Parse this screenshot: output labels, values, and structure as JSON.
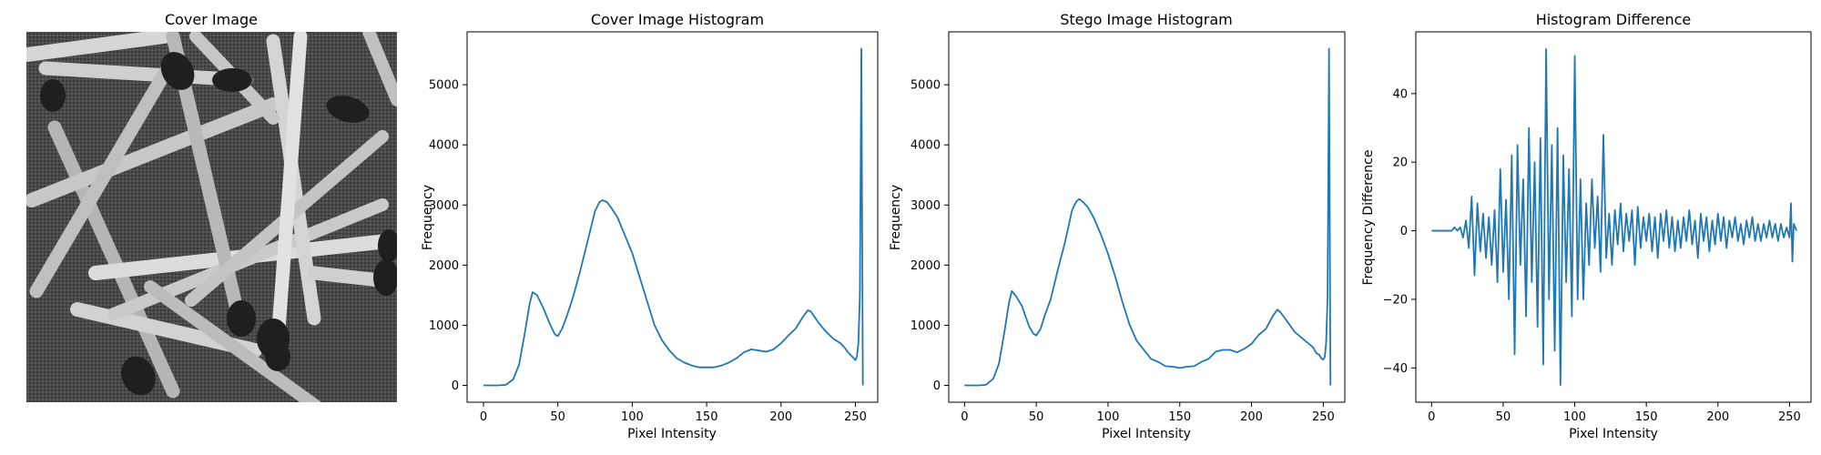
{
  "figure": {
    "panels": [
      "Cover Image",
      "Cover Image Histogram",
      "Stego Image Histogram",
      "Histogram Difference"
    ]
  },
  "chart_data": [
    {
      "type": "image",
      "title": "Cover Image",
      "content": "grayscale photograph of scattered wooden matchsticks with dark heads on a textured fabric background"
    },
    {
      "type": "line",
      "title": "Cover Image Histogram",
      "xlabel": "Pixel Intensity",
      "ylabel": "Frequency",
      "xlim": [
        -11,
        265
      ],
      "ylim": [
        -280,
        5880
      ],
      "xticks": [
        0,
        50,
        100,
        150,
        200,
        250
      ],
      "yticks": [
        0,
        1000,
        2000,
        3000,
        4000,
        5000
      ],
      "grid": false,
      "color": "#1f77b4",
      "series": [
        {
          "x": [
            0,
            10,
            15,
            20,
            24,
            28,
            31,
            33,
            36,
            40,
            45,
            48,
            50,
            53,
            56,
            60,
            65,
            70,
            75,
            78,
            80,
            83,
            86,
            90,
            95,
            100,
            105,
            110,
            115,
            120,
            125,
            130,
            135,
            140,
            145,
            150,
            155,
            160,
            165,
            170,
            175,
            180,
            185,
            190,
            195,
            200,
            205,
            210,
            215,
            218,
            220,
            225,
            230,
            235,
            240,
            243,
            245,
            247,
            249,
            250,
            251,
            252,
            253,
            254,
            255
          ],
          "y": [
            0,
            0,
            10,
            100,
            350,
            900,
            1350,
            1550,
            1500,
            1300,
            1000,
            850,
            820,
            950,
            1150,
            1450,
            1900,
            2400,
            2900,
            3050,
            3080,
            3050,
            2950,
            2800,
            2500,
            2200,
            1800,
            1400,
            1000,
            750,
            580,
            450,
            380,
            330,
            300,
            300,
            300,
            330,
            380,
            450,
            550,
            600,
            580,
            560,
            600,
            700,
            830,
            950,
            1150,
            1250,
            1230,
            1050,
            900,
            780,
            700,
            620,
            550,
            500,
            450,
            420,
            480,
            700,
            1500,
            5600,
            0
          ]
        }
      ]
    },
    {
      "type": "line",
      "title": "Stego Image Histogram",
      "xlabel": "Pixel Intensity",
      "ylabel": "Frequency",
      "xlim": [
        -11,
        265
      ],
      "ylim": [
        -280,
        5880
      ],
      "xticks": [
        0,
        50,
        100,
        150,
        200,
        250
      ],
      "yticks": [
        0,
        1000,
        2000,
        3000,
        4000,
        5000
      ],
      "grid": false,
      "color": "#1f77b4",
      "series": [
        {
          "x": [
            0,
            10,
            15,
            20,
            24,
            28,
            31,
            33,
            36,
            40,
            45,
            48,
            50,
            53,
            56,
            60,
            65,
            70,
            75,
            78,
            80,
            83,
            86,
            90,
            95,
            100,
            105,
            110,
            115,
            120,
            125,
            130,
            135,
            140,
            145,
            150,
            155,
            160,
            165,
            170,
            175,
            180,
            185,
            190,
            195,
            200,
            205,
            210,
            215,
            218,
            220,
            225,
            230,
            235,
            240,
            243,
            245,
            247,
            249,
            250,
            251,
            252,
            253,
            254,
            255
          ],
          "y": [
            0,
            0,
            10,
            110,
            360,
            920,
            1380,
            1570,
            1480,
            1320,
            980,
            860,
            830,
            940,
            1170,
            1430,
            1920,
            2380,
            2920,
            3060,
            3100,
            3040,
            2960,
            2790,
            2510,
            2190,
            1810,
            1390,
            1010,
            740,
            590,
            440,
            390,
            320,
            310,
            290,
            310,
            320,
            390,
            440,
            560,
            590,
            590,
            550,
            610,
            690,
            840,
            940,
            1160,
            1260,
            1220,
            1060,
            890,
            790,
            690,
            630,
            540,
            510,
            440,
            430,
            470,
            710,
            1480,
            5600,
            0
          ]
        }
      ]
    },
    {
      "type": "line",
      "title": "Histogram Difference",
      "xlabel": "Pixel Intensity",
      "ylabel": "Frequency Difference",
      "xlim": [
        -11,
        265
      ],
      "ylim": [
        -50,
        58
      ],
      "xticks": [
        0,
        50,
        100,
        150,
        200,
        250
      ],
      "yticks": [
        -40,
        -20,
        0,
        20,
        40
      ],
      "grid": false,
      "color": "#1f77b4",
      "series": [
        {
          "x": [
            0,
            8,
            14,
            16,
            18,
            20,
            22,
            24,
            26,
            28,
            30,
            32,
            34,
            36,
            38,
            40,
            42,
            44,
            46,
            48,
            50,
            52,
            54,
            56,
            58,
            60,
            62,
            64,
            66,
            68,
            70,
            72,
            74,
            76,
            78,
            80,
            82,
            84,
            86,
            88,
            90,
            92,
            94,
            96,
            98,
            100,
            102,
            104,
            106,
            108,
            110,
            112,
            114,
            116,
            118,
            120,
            122,
            124,
            126,
            128,
            130,
            132,
            134,
            136,
            138,
            140,
            142,
            144,
            146,
            148,
            150,
            152,
            154,
            156,
            158,
            160,
            162,
            164,
            166,
            168,
            170,
            172,
            174,
            176,
            178,
            180,
            182,
            184,
            186,
            188,
            190,
            192,
            194,
            196,
            198,
            200,
            202,
            204,
            206,
            208,
            210,
            212,
            214,
            216,
            218,
            220,
            222,
            224,
            226,
            228,
            230,
            232,
            234,
            236,
            238,
            240,
            242,
            244,
            246,
            248,
            250,
            251,
            252,
            253,
            254,
            255
          ],
          "y": [
            0,
            0,
            0,
            1,
            0,
            1,
            -2,
            3,
            -5,
            10,
            -13,
            8,
            -6,
            5,
            -8,
            4,
            -10,
            6,
            -15,
            18,
            -12,
            9,
            -20,
            22,
            -36,
            25,
            -10,
            15,
            -25,
            30,
            -15,
            20,
            -28,
            27,
            -39,
            53,
            -20,
            25,
            -35,
            30,
            -45,
            22,
            -15,
            18,
            -25,
            51,
            -20,
            15,
            -20,
            8,
            -10,
            15,
            -5,
            10,
            -12,
            28,
            -8,
            5,
            -10,
            6,
            -4,
            8,
            -6,
            5,
            -3,
            6,
            -10,
            7,
            -5,
            4,
            -3,
            5,
            -6,
            4,
            -8,
            5,
            -3,
            6,
            -5,
            4,
            -6,
            3,
            -5,
            4,
            -3,
            6,
            -4,
            3,
            -8,
            5,
            -3,
            4,
            -6,
            3,
            -4,
            5,
            -3,
            4,
            -5,
            3,
            -2,
            4,
            -3,
            2,
            -4,
            3,
            -2,
            4,
            -3,
            2,
            -3,
            2,
            -2,
            3,
            -2,
            2,
            -3,
            2,
            -2,
            1,
            -2,
            8,
            -9,
            2,
            1,
            0
          ]
        }
      ]
    }
  ]
}
